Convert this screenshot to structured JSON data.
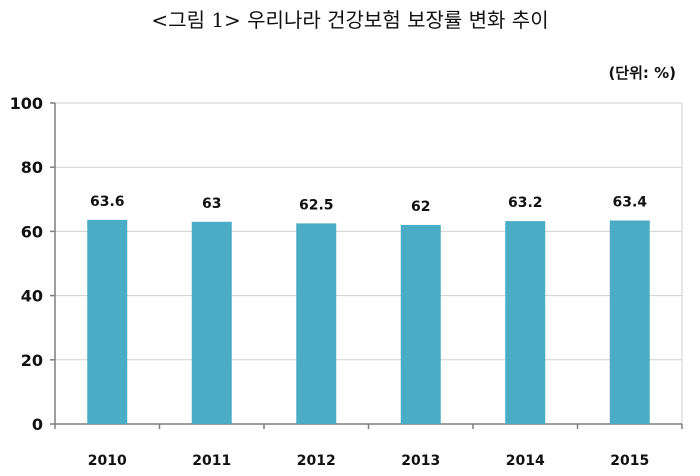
{
  "title": "<그림 1> 우리나라 건강보험 보장률 변화 추이",
  "unit_label": "(단위: %)",
  "colors": {
    "bar": "#4bacc6",
    "axis": "#7f7f7f",
    "grid": "#d0d0d0"
  },
  "chart_data": {
    "type": "bar",
    "categories": [
      "2010",
      "2011",
      "2012",
      "2013",
      "2014",
      "2015"
    ],
    "values": [
      63.6,
      63,
      62.5,
      62,
      63.2,
      63.4
    ],
    "data_labels": [
      "63.6",
      "63",
      "62.5",
      "62",
      "63.2",
      "63.4"
    ],
    "title": "<그림 1> 우리나라 건강보험 보장률 변화 추이",
    "xlabel": "",
    "ylabel": "",
    "ylim": [
      0,
      100
    ],
    "yticks": [
      0,
      20,
      40,
      60,
      80,
      100
    ],
    "grid": true,
    "legend": "none"
  }
}
